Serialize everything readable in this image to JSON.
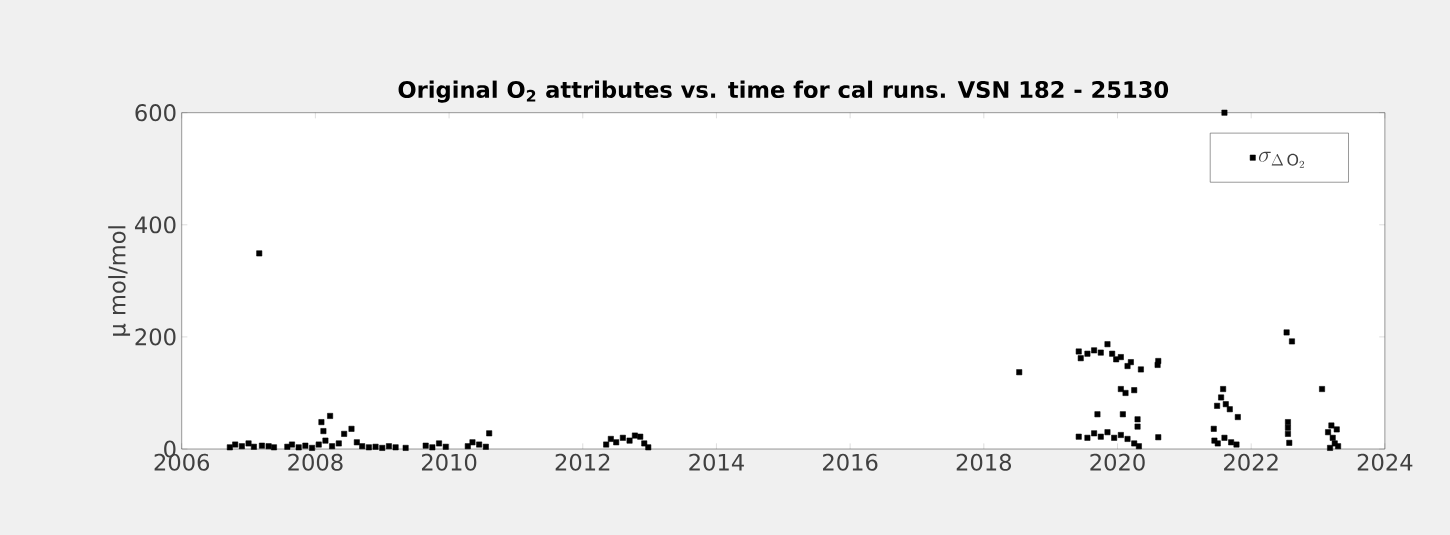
{
  "chart_data": {
    "type": "scatter",
    "title": "Original O$_{2}$ attributes vs. time for cal runs.  VSN 182 - 25130",
    "ylabel": "μ mol/mol",
    "xlim": [
      2006,
      2024
    ],
    "xticks": [
      2006,
      2008,
      2010,
      2012,
      2014,
      2016,
      2018,
      2020,
      2022,
      2024
    ],
    "ylim": [
      0,
      600
    ],
    "yticks": [
      0,
      200,
      400,
      600
    ],
    "grid": false,
    "legend": "top right",
    "marker": "square",
    "series": [
      {
        "name": "\\sigma_{\\Delta\\,\\mathrm{O}_{2}}",
        "color": "#000000",
        "x": [
          2006.72,
          2006.8,
          2006.9,
          2007.0,
          2007.08,
          2007.2,
          2007.3,
          2007.38,
          2007.16,
          2007.58,
          2007.65,
          2007.75,
          2007.85,
          2007.95,
          2008.05,
          2008.09,
          2008.12,
          2008.15,
          2008.22,
          2008.25,
          2008.35,
          2008.43,
          2008.54,
          2008.62,
          2008.7,
          2008.8,
          2008.9,
          2009.0,
          2009.1,
          2009.2,
          2009.35,
          2009.65,
          2009.75,
          2009.85,
          2009.95,
          2010.28,
          2010.35,
          2010.45,
          2010.55,
          2010.6,
          2012.35,
          2012.42,
          2012.5,
          2012.6,
          2012.7,
          2012.78,
          2012.86,
          2012.92,
          2012.98,
          2018.53,
          2019.42,
          2019.45,
          2019.55,
          2019.65,
          2019.75,
          2019.85,
          2019.92,
          2019.98,
          2020.05,
          2020.15,
          2020.2,
          2020.35,
          2020.61,
          2020.6,
          2020.05,
          2020.12,
          2020.25,
          2019.7,
          2020.08,
          2020.3,
          2020.3,
          2019.42,
          2019.55,
          2019.65,
          2019.75,
          2019.85,
          2019.95,
          2020.05,
          2020.15,
          2020.25,
          2020.32,
          2020.61,
          2021.44,
          2021.45,
          2021.5,
          2021.58,
          2021.55,
          2021.49,
          2021.62,
          2021.68,
          2021.8,
          2021.6,
          2021.7,
          2021.78,
          2021.6,
          2022.53,
          2022.61,
          2022.55,
          2022.55,
          2022.55,
          2022.57,
          2023.06,
          2023.15,
          2023.2,
          2023.22,
          2023.25,
          2023.28,
          2023.3,
          2023.18
        ],
        "values": [
          3,
          8,
          5,
          10,
          4,
          6,
          5,
          3,
          349,
          4,
          8,
          3,
          6,
          2,
          8,
          48,
          32,
          15,
          59,
          5,
          10,
          27,
          36,
          12,
          5,
          3,
          4,
          2,
          5,
          3,
          2,
          6,
          3,
          10,
          4,
          5,
          12,
          8,
          4,
          28,
          8,
          18,
          12,
          20,
          15,
          24,
          22,
          10,
          3,
          137,
          174,
          162,
          170,
          176,
          172,
          187,
          170,
          160,
          164,
          148,
          155,
          142,
          157,
          150,
          107,
          100,
          105,
          62,
          62,
          53,
          40,
          22,
          20,
          28,
          22,
          30,
          20,
          25,
          18,
          10,
          5,
          21,
          36,
          15,
          10,
          107,
          92,
          77,
          80,
          71,
          57,
          20,
          12,
          8,
          600,
          208,
          192,
          48,
          38,
          27,
          11,
          107,
          30,
          42,
          20,
          10,
          35,
          5,
          2
        ]
      }
    ]
  }
}
